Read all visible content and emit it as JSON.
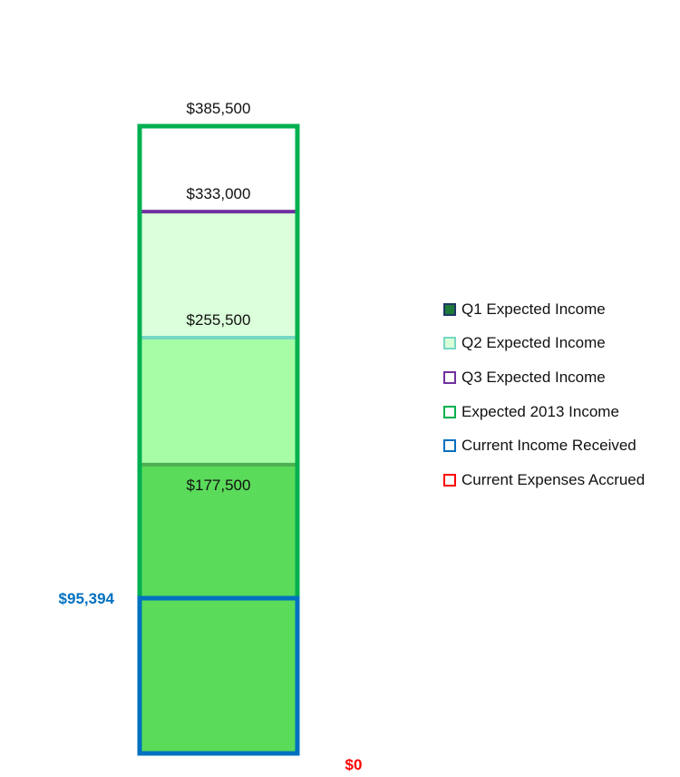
{
  "chart_data": {
    "type": "bar",
    "stacked": true,
    "ylim": [
      0,
      385500
    ],
    "segments": [
      {
        "name": "Q1 Expected Income",
        "from": 0,
        "to": 177500,
        "fill": "#5ADB5A",
        "cap_color": "#4CAF50",
        "label": "$177,500"
      },
      {
        "name": "Q2 Expected Income",
        "from": 177500,
        "to": 255500,
        "fill": "#A6FDA6",
        "cap_color": "#76D7C4",
        "label": "$255,500"
      },
      {
        "name": "Q3 Expected Income",
        "from": 255500,
        "to": 333000,
        "fill": "#DAFFDA",
        "cap_color": "#7030A0",
        "label": "$333,000"
      }
    ],
    "expected_total": {
      "name": "Expected 2013 Income",
      "value": 385500,
      "label": "$385,500",
      "color": "#00B050"
    },
    "current_income": {
      "name": "Current Income Received",
      "value": 95394,
      "label": "$95,394",
      "color": "#0070C0"
    },
    "current_expenses": {
      "name": "Current Expenses Accrued",
      "value": 0,
      "label": "$0",
      "color": "#FF0000"
    },
    "legend": {
      "position": "right",
      "items": [
        {
          "label": "Q1 Expected Income",
          "border": "#1F3864",
          "fill": "#1E7B3A"
        },
        {
          "label": "Q2 Expected Income",
          "border": "#76D7C4",
          "fill": "#D9FFD9"
        },
        {
          "label": "Q3 Expected Income",
          "border": "#7030A0",
          "fill": "#ffffff"
        },
        {
          "label": "Expected 2013 Income",
          "border": "#00B050",
          "fill": "#ffffff"
        },
        {
          "label": "Current Income Received",
          "border": "#0070C0",
          "fill": "#ffffff"
        },
        {
          "label": "Current Expenses Accrued",
          "border": "#FF0000",
          "fill": "#ffffff"
        }
      ]
    }
  }
}
